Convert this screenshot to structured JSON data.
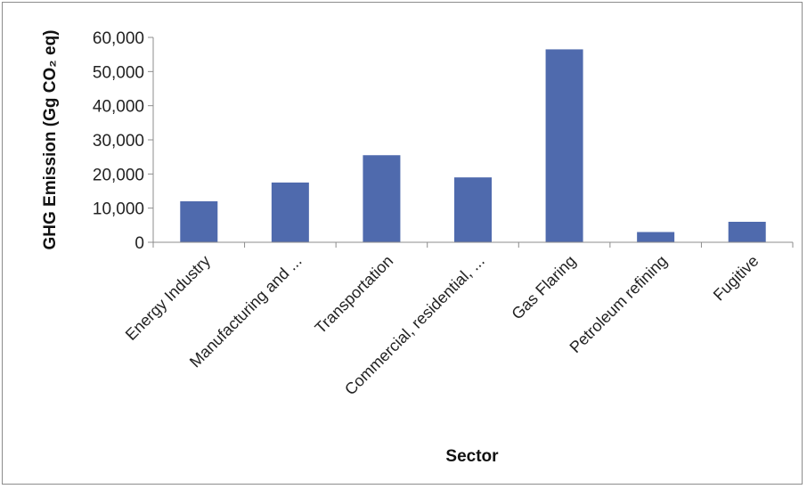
{
  "chart_data": {
    "type": "bar",
    "categories": [
      "Energy Industry",
      "Manufacturing and ...",
      "Transportation",
      "Commercial, residential, ...",
      "Gas Flaring",
      "Petroleum refining",
      "Fugitive"
    ],
    "values": [
      12000,
      17500,
      25500,
      19000,
      56500,
      3000,
      6000
    ],
    "xlabel": "Sector",
    "ylabel": "GHG Emission  (Gg CO₂ eq)",
    "ylim": [
      0,
      60000
    ],
    "yticks": [
      0,
      10000,
      20000,
      30000,
      40000,
      50000,
      60000
    ],
    "ytick_labels": [
      "0",
      "10,000",
      "20,000",
      "30,000",
      "40,000",
      "50,000",
      "60,000"
    ],
    "grid": false,
    "legend": "none",
    "bar_color": "#4f6aad"
  }
}
